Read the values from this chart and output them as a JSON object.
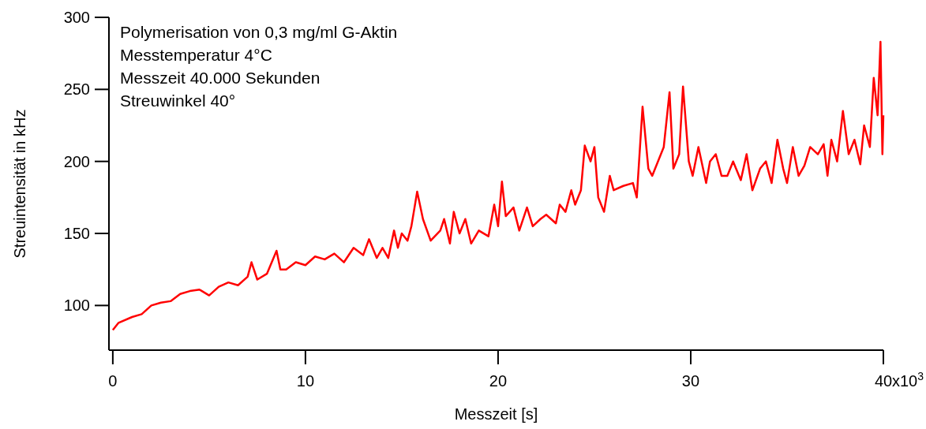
{
  "chart_data": {
    "type": "line",
    "xlabel": "Messzeit [s]",
    "ylabel": "Streuintensität in kHz",
    "annotations": [
      "Polymerisation von 0,3 mg/ml G-Aktin",
      "Messtemperatur 4°C",
      "Messzeit 40.000 Sekunden",
      "Streuwinkel 40°",
      "x10$^{3}$"
    ],
    "xlim": [
      -0.2,
      40
    ],
    "ylim": [
      69,
      300
    ],
    "xticks": [
      0,
      10,
      20,
      30,
      40
    ],
    "yticks": [
      100,
      150,
      200,
      250,
      300
    ],
    "grid": false,
    "line_style": "solid",
    "series": [
      {
        "color": "#ff0000",
        "x": [
          0,
          0.3,
          1,
          1.5,
          2,
          2.5,
          3,
          3.5,
          4,
          4.5,
          5,
          5.5,
          6,
          6.5,
          7,
          7.2,
          7.5,
          8,
          8.5,
          8.7,
          9,
          9.5,
          10,
          10.5,
          11,
          11.5,
          12,
          12.5,
          13,
          13.3,
          13.7,
          14,
          14.3,
          14.6,
          14.8,
          15,
          15.3,
          15.5,
          15.8,
          16.1,
          16.5,
          17,
          17.2,
          17.5,
          17.7,
          18,
          18.3,
          18.6,
          19,
          19.5,
          19.8,
          20,
          20.2,
          20.4,
          20.8,
          21.1,
          21.5,
          21.8,
          22.2,
          22.5,
          23,
          23.2,
          23.5,
          23.8,
          24,
          24.3,
          24.5,
          24.8,
          25,
          25.2,
          25.5,
          25.8,
          26,
          26.5,
          27,
          27.2,
          27.5,
          27.8,
          28,
          28.3,
          28.6,
          28.9,
          29.1,
          29.4,
          29.6,
          29.9,
          30.1,
          30.4,
          30.8,
          31,
          31.3,
          31.6,
          31.9,
          32.2,
          32.6,
          32.9,
          33.2,
          33.6,
          33.9,
          34.2,
          34.5,
          34.8,
          35,
          35.3,
          35.6,
          35.9,
          36.2,
          36.6,
          36.9,
          37.1,
          37.3,
          37.6,
          37.9,
          38.2,
          38.5,
          38.8,
          39,
          39.3,
          39.5,
          39.7,
          39.85,
          39.95,
          40
        ],
        "values": [
          83,
          88,
          92,
          94,
          100,
          102,
          103,
          108,
          110,
          111,
          107,
          113,
          116,
          114,
          120,
          130,
          118,
          122,
          138,
          125,
          125,
          130,
          128,
          134,
          132,
          136,
          130,
          140,
          135,
          146,
          133,
          140,
          133,
          152,
          140,
          150,
          145,
          155,
          179,
          160,
          145,
          152,
          160,
          143,
          165,
          150,
          160,
          143,
          152,
          148,
          170,
          155,
          186,
          162,
          168,
          152,
          168,
          155,
          160,
          163,
          157,
          170,
          165,
          180,
          170,
          180,
          211,
          200,
          210,
          175,
          165,
          190,
          180,
          183,
          185,
          175,
          238,
          195,
          190,
          200,
          210,
          248,
          195,
          205,
          252,
          200,
          190,
          210,
          185,
          200,
          205,
          190,
          190,
          200,
          187,
          205,
          180,
          195,
          200,
          185,
          215,
          195,
          185,
          210,
          190,
          197,
          210,
          205,
          212,
          190,
          215,
          200,
          235,
          205,
          215,
          198,
          225,
          210,
          258,
          232,
          283,
          205,
          232
        ]
      }
    ]
  }
}
